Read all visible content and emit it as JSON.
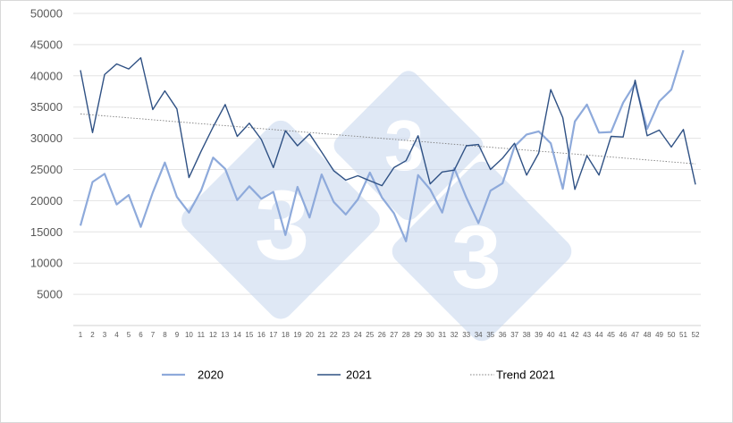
{
  "chart_data": {
    "type": "line",
    "x": [
      1,
      2,
      3,
      4,
      5,
      6,
      7,
      8,
      9,
      10,
      11,
      12,
      13,
      14,
      15,
      16,
      17,
      18,
      19,
      20,
      21,
      22,
      23,
      24,
      25,
      26,
      27,
      28,
      29,
      30,
      31,
      32,
      33,
      34,
      35,
      36,
      37,
      38,
      39,
      40,
      41,
      42,
      43,
      44,
      45,
      46,
      47,
      48,
      49,
      50,
      51,
      52
    ],
    "ylim": [
      0,
      50000
    ],
    "yticks": [
      5000,
      10000,
      15000,
      20000,
      25000,
      30000,
      35000,
      40000,
      45000,
      50000
    ],
    "grid": true,
    "legend": "bottom",
    "series": [
      {
        "name": "2020",
        "color": "#8eaadb",
        "values": [
          16000,
          23000,
          24300,
          19400,
          20900,
          15800,
          21300,
          26100,
          20600,
          18100,
          21600,
          26900,
          25100,
          20100,
          22300,
          20300,
          21400,
          14500,
          22200,
          17300,
          24200,
          19800,
          17800,
          20200,
          24500,
          20500,
          18000,
          13500,
          24100,
          21800,
          18100,
          25200,
          20500,
          16400,
          21600,
          22800,
          28700,
          30600,
          31100,
          29200,
          21900,
          32700,
          35400,
          30900,
          31000,
          35700,
          38800,
          31500,
          35900,
          37800,
          44100,
          null
        ]
      },
      {
        "name": "2021",
        "color": "#2f5184",
        "values": [
          40900,
          30900,
          40200,
          41900,
          41100,
          42900,
          34600,
          37600,
          34700,
          23700,
          27900,
          31800,
          35400,
          30300,
          32400,
          29800,
          25300,
          31200,
          28800,
          30700,
          27800,
          24800,
          23300,
          24000,
          23200,
          22400,
          25300,
          26400,
          30400,
          22700,
          24600,
          24900,
          28800,
          29000,
          25000,
          26800,
          29200,
          24100,
          27600,
          37800,
          33300,
          21800,
          27200,
          24100,
          30300,
          30200,
          39300,
          30400,
          31300,
          28600,
          31400,
          22600
        ]
      }
    ],
    "trend": {
      "name": "Trend 2021",
      "color": "#7f7f7f",
      "start": 33900,
      "end": 25900
    }
  }
}
